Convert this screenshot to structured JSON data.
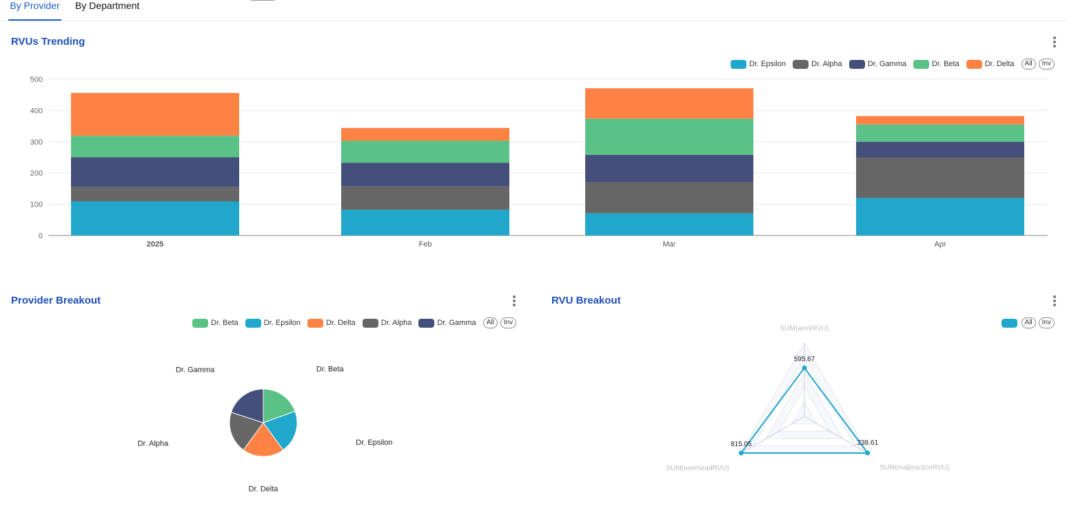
{
  "tabs": [
    {
      "label": "By Provider",
      "active": true
    },
    {
      "label": "By Department",
      "active": false
    }
  ],
  "colors": {
    "Dr. Epsilon": "#21a7cc",
    "Dr. Alpha": "#666666",
    "Dr. Gamma": "#454f7c",
    "Dr. Beta": "#5ac287",
    "Dr. Delta": "#ff8245",
    "accent": "#1d4fb8"
  },
  "trending": {
    "title": "RVUs Trending",
    "legend": [
      "Dr. Epsilon",
      "Dr. Alpha",
      "Dr. Gamma",
      "Dr. Beta",
      "Dr. Delta"
    ],
    "all_label": "All",
    "inv_label": "Inv"
  },
  "provider_breakout": {
    "title": "Provider Breakout",
    "legend": [
      "Dr. Beta",
      "Dr. Epsilon",
      "Dr. Delta",
      "Dr. Alpha",
      "Dr. Gamma"
    ],
    "all_label": "All",
    "inv_label": "Inv"
  },
  "rvu_breakout": {
    "title": "RVU Breakout",
    "all_label": "All",
    "inv_label": "Inv"
  },
  "chart_data": [
    {
      "type": "bar",
      "stacked": true,
      "title": "RVUs Trending",
      "categories": [
        "2025",
        "Feb",
        "Mar",
        "Apr"
      ],
      "series": [
        {
          "name": "Dr. Epsilon",
          "values": [
            109,
            82,
            71,
            120
          ]
        },
        {
          "name": "Dr. Alpha",
          "values": [
            46,
            75,
            99,
            130
          ]
        },
        {
          "name": "Dr. Gamma",
          "values": [
            95,
            76,
            88,
            50
          ]
        },
        {
          "name": "Dr. Beta",
          "values": [
            69,
            70,
            116,
            55
          ]
        },
        {
          "name": "Dr. Delta",
          "values": [
            137,
            41,
            97,
            27
          ]
        }
      ],
      "yticks": [
        0,
        100,
        200,
        300,
        400,
        500
      ],
      "ylim": [
        0,
        500
      ],
      "grid": true,
      "legend_position": "top-right"
    },
    {
      "type": "pie",
      "title": "Provider Breakout",
      "slices": [
        {
          "name": "Dr. Beta",
          "value": 19.5
        },
        {
          "name": "Dr. Epsilon",
          "value": 20.5
        },
        {
          "name": "Dr. Delta",
          "value": 20
        },
        {
          "name": "Dr. Alpha",
          "value": 20
        },
        {
          "name": "Dr. Gamma",
          "value": 20
        }
      ],
      "legend_position": "top-right"
    },
    {
      "type": "radar",
      "title": "RVU Breakout",
      "axes": [
        "SUM(workRVU)",
        "SUM(malpracticeRVU)",
        "SUM(overheadRVU)"
      ],
      "values": [
        595.67,
        238.61,
        815.05
      ],
      "value_labels": [
        "595.67",
        "238.61",
        "815.05"
      ],
      "rel": [
        0.66,
        0.99,
        0.99
      ],
      "legend_position": "top-right"
    }
  ]
}
